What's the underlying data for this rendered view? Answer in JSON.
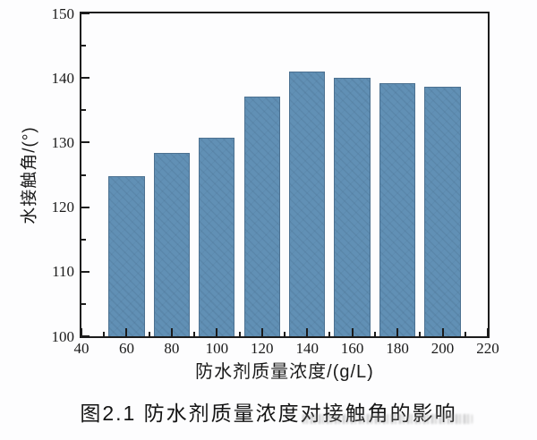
{
  "figure": {
    "caption": "图2.1  防水剂质量浓度对接触角的影响"
  },
  "chart_data": {
    "type": "bar",
    "title": "",
    "xlabel": "防水剂质量浓度/(g/L)",
    "ylabel": "水接触角/(°)",
    "x": [
      60,
      80,
      100,
      120,
      140,
      160,
      180,
      200
    ],
    "values": [
      124.8,
      128.4,
      130.8,
      137.1,
      141.0,
      140.0,
      139.2,
      138.6
    ],
    "xlim": [
      40,
      220
    ],
    "ylim": [
      100,
      150
    ],
    "x_major_ticks": [
      40,
      60,
      80,
      100,
      120,
      140,
      160,
      180,
      200,
      220
    ],
    "x_minor_ticks": [
      50,
      70,
      90,
      110,
      130,
      150,
      170,
      190,
      210
    ],
    "y_major_ticks": [
      100,
      110,
      120,
      130,
      140,
      150
    ],
    "y_minor_ticks": [
      105,
      115,
      125,
      135,
      145
    ],
    "bar_width_units": 16,
    "bar_fill": "#6190b5",
    "bar_edge": "#4c7191",
    "axis_color": "#1c1c1c",
    "grid": false,
    "legend": null,
    "tick_direction": "in"
  }
}
